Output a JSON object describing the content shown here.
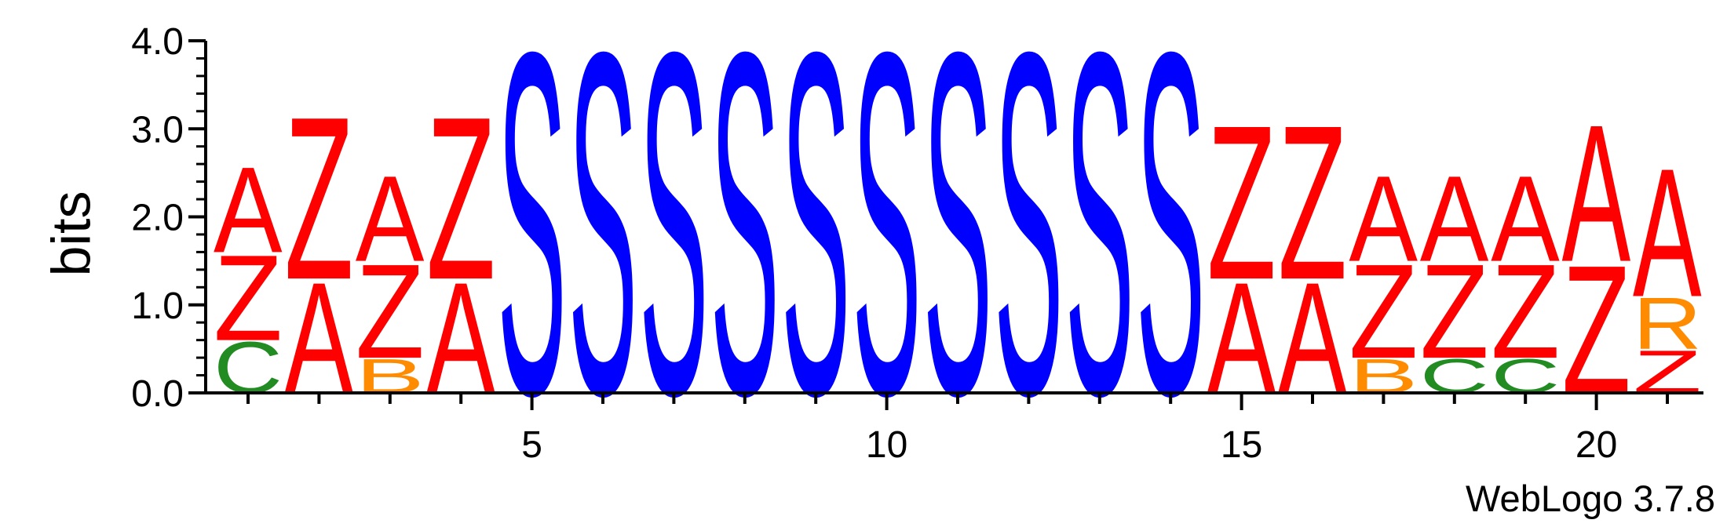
{
  "chart_data": {
    "type": "sequence-logo",
    "ylabel": "bits",
    "ylim": [
      0,
      4.0
    ],
    "y_ticks": [
      "0.0",
      "1.0",
      "2.0",
      "3.0",
      "4.0"
    ],
    "y_tick_values": [
      0,
      1,
      2,
      3,
      4
    ],
    "x_tick_labels": [
      "5",
      "10",
      "15",
      "20"
    ],
    "x_tick_values": [
      5,
      10,
      15,
      20
    ],
    "positions": [
      {
        "pos": 1,
        "stack": [
          {
            "letter": "C",
            "bits": 0.6
          },
          {
            "letter": "Z",
            "bits": 1.0
          },
          {
            "letter": "A",
            "bits": 1.0
          }
        ]
      },
      {
        "pos": 2,
        "stack": [
          {
            "letter": "A",
            "bits": 1.3
          },
          {
            "letter": "Z",
            "bits": 1.9
          }
        ]
      },
      {
        "pos": 3,
        "stack": [
          {
            "letter": "B",
            "bits": 0.4
          },
          {
            "letter": "Z",
            "bits": 1.1
          },
          {
            "letter": "A",
            "bits": 1.0
          }
        ]
      },
      {
        "pos": 4,
        "stack": [
          {
            "letter": "A",
            "bits": 1.3
          },
          {
            "letter": "Z",
            "bits": 1.9
          }
        ]
      },
      {
        "pos": 5,
        "stack": [
          {
            "letter": "S",
            "bits": 4.0
          }
        ]
      },
      {
        "pos": 6,
        "stack": [
          {
            "letter": "S",
            "bits": 4.0
          }
        ]
      },
      {
        "pos": 7,
        "stack": [
          {
            "letter": "S",
            "bits": 4.0
          }
        ]
      },
      {
        "pos": 8,
        "stack": [
          {
            "letter": "S",
            "bits": 4.0
          }
        ]
      },
      {
        "pos": 9,
        "stack": [
          {
            "letter": "S",
            "bits": 4.0
          }
        ]
      },
      {
        "pos": 10,
        "stack": [
          {
            "letter": "S",
            "bits": 4.0
          }
        ]
      },
      {
        "pos": 11,
        "stack": [
          {
            "letter": "S",
            "bits": 4.0
          }
        ]
      },
      {
        "pos": 12,
        "stack": [
          {
            "letter": "S",
            "bits": 4.0
          }
        ]
      },
      {
        "pos": 13,
        "stack": [
          {
            "letter": "S",
            "bits": 4.0
          }
        ]
      },
      {
        "pos": 14,
        "stack": [
          {
            "letter": "S",
            "bits": 4.0
          }
        ]
      },
      {
        "pos": 15,
        "stack": [
          {
            "letter": "A",
            "bits": 1.3
          },
          {
            "letter": "Z",
            "bits": 1.8
          }
        ]
      },
      {
        "pos": 16,
        "stack": [
          {
            "letter": "A",
            "bits": 1.3
          },
          {
            "letter": "Z",
            "bits": 1.8
          }
        ]
      },
      {
        "pos": 17,
        "stack": [
          {
            "letter": "B",
            "bits": 0.4
          },
          {
            "letter": "Z",
            "bits": 1.1
          },
          {
            "letter": "A",
            "bits": 1.0
          }
        ]
      },
      {
        "pos": 18,
        "stack": [
          {
            "letter": "C",
            "bits": 0.4
          },
          {
            "letter": "Z",
            "bits": 1.1
          },
          {
            "letter": "A",
            "bits": 1.0
          }
        ]
      },
      {
        "pos": 19,
        "stack": [
          {
            "letter": "C",
            "bits": 0.4
          },
          {
            "letter": "Z",
            "bits": 1.1
          },
          {
            "letter": "A",
            "bits": 1.0
          }
        ]
      },
      {
        "pos": 20,
        "stack": [
          {
            "letter": "Z",
            "bits": 1.5
          },
          {
            "letter": "A",
            "bits": 1.6
          }
        ]
      },
      {
        "pos": 21,
        "stack": [
          {
            "letter": "Z",
            "bits": 0.5
          },
          {
            "letter": "R",
            "bits": 0.6
          },
          {
            "letter": "A",
            "bits": 1.5
          }
        ]
      }
    ],
    "letter_colors": {
      "A": "#ff0000",
      "Z": "#ff0000",
      "S": "#0000ff",
      "C": "#228b22",
      "B": "#ff8c00",
      "R": "#ff8c00"
    },
    "grid": false,
    "credit": "WebLogo 3.7.8"
  }
}
